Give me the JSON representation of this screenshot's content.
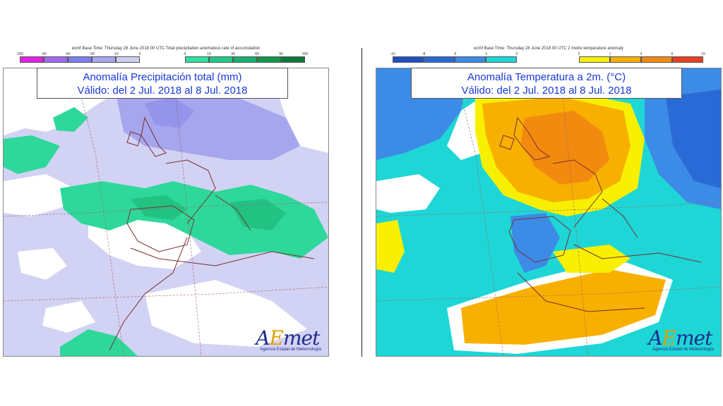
{
  "panels": {
    "left": {
      "header": "ecmf  Base Time: Thursday 28 June 2018 00 UTC Total precipitation anomalous rate of accumulation",
      "title_line1": "Anomalía Precipitación total (mm)",
      "title_line2": "Válido: del 2 Jul. 2018 al 8 Jul. 2018",
      "legend_negative": {
        "ticks": [
          "-200",
          "-90",
          "-60",
          "-30",
          "-10",
          "0"
        ],
        "colors": [
          "#e020e0",
          "#9f6cf0",
          "#7c7ef0",
          "#a7a7f0",
          "#cfcff4"
        ]
      },
      "legend_positive": {
        "ticks": [
          "0",
          "10",
          "30",
          "60",
          "90",
          "200"
        ],
        "colors": [
          "#2ee0a0",
          "#20c888",
          "#18b070",
          "#109848",
          "#087838"
        ]
      }
    },
    "right": {
      "header": "ecmf  Base Time: Thursday 28 June 2018 00 UTC 2 metre temperature anomaly",
      "title_line1": "Anomalía Temperatura a 2m. (°C)",
      "title_line2": "Válido: del 2 Jul. 2018 al 8 Jul. 2018",
      "legend_negative": {
        "ticks": [
          "-10",
          "-8",
          "-3",
          "-1",
          "0"
        ],
        "colors": [
          "#1f4fbf",
          "#2a6ad6",
          "#3c8be6",
          "#1cd8d8"
        ]
      },
      "legend_positive": {
        "ticks": [
          "0",
          "1",
          "3",
          "6",
          "10"
        ],
        "colors": [
          "#f8f000",
          "#f8b000",
          "#f28a10",
          "#e84020"
        ]
      }
    }
  },
  "logo": {
    "word_a": "A",
    "word_e": "E",
    "word_rest": "met",
    "subtitle": "Agencia Estatal de Meteorología"
  }
}
